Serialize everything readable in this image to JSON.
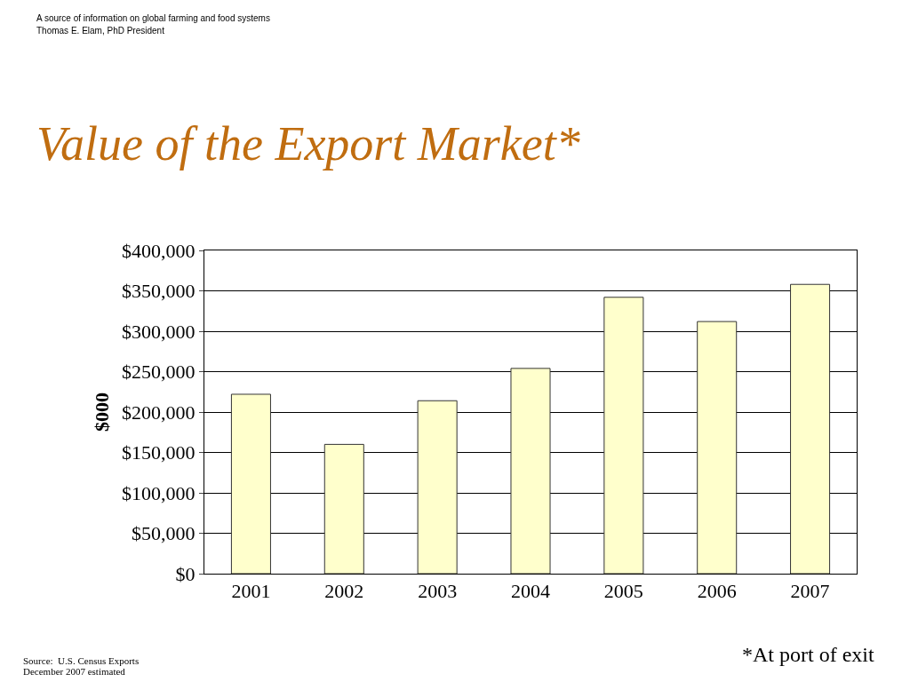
{
  "chart_data": {
    "type": "bar",
    "title": "Value of the Export Market*",
    "ylabel": "$000",
    "categories": [
      "2001",
      "2002",
      "2003",
      "2004",
      "2005",
      "2006",
      "2007"
    ],
    "values": [
      222000,
      160000,
      214000,
      254000,
      342000,
      312000,
      358000
    ],
    "color": "#ffffcc",
    "ylim": [
      0,
      400000
    ],
    "yticks": [
      {
        "value": 0,
        "label": "$0"
      },
      {
        "value": 50000,
        "label": "$50,000"
      },
      {
        "value": 100000,
        "label": "$100,000"
      },
      {
        "value": 150000,
        "label": "$150,000"
      },
      {
        "value": 200000,
        "label": "$200,000"
      },
      {
        "value": 250000,
        "label": "$250,000"
      },
      {
        "value": 300000,
        "label": "$300,000"
      },
      {
        "value": 350000,
        "label": "$350,000"
      },
      {
        "value": 400000,
        "label": "$400,000"
      }
    ],
    "grid": "y",
    "legend": false,
    "annotations": [
      "A source of information on global farming and food systems",
      "Thomas E. Elam, PhD President",
      "Source:  U.S. Census Exports",
      "December 2007 estimated",
      "*At port of exit"
    ]
  }
}
